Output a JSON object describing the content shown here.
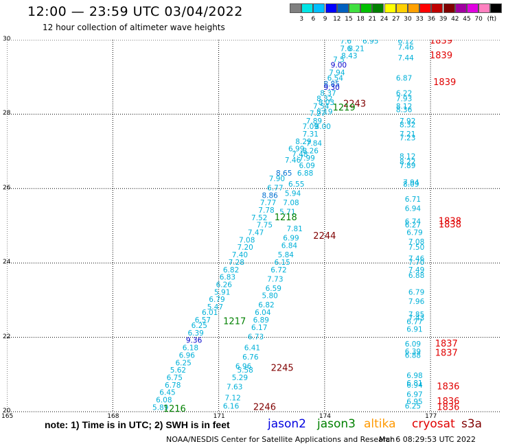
{
  "header": {
    "title": "12:00 — 23:59 UTC 03/04/2022",
    "subtitle": "12 hour collection of altimeter wave heights"
  },
  "colorbar": {
    "colors": [
      "#808080",
      "#00e5e5",
      "#00bfff",
      "#0000ff",
      "#0060c0",
      "#40e040",
      "#00c000",
      "#008000",
      "#ffff00",
      "#ffd000",
      "#ffa000",
      "#ff0000",
      "#c00000",
      "#800000",
      "#a000a0",
      "#e000e0",
      "#ff80c0",
      "#000000"
    ],
    "labels": [
      "3",
      "6",
      "9",
      "12",
      "15",
      "18",
      "21",
      "24",
      "27",
      "30",
      "33",
      "36",
      "39",
      "42",
      "45",
      "70",
      "(ft)"
    ]
  },
  "axes": {
    "yticks": [
      "30",
      "28",
      "26",
      "24",
      "22",
      "20"
    ],
    "xticks": [
      "165",
      "168",
      "171",
      "174",
      "177"
    ]
  },
  "chart_data": {
    "type": "scatter",
    "xlim": [
      165,
      179
    ],
    "ylim": [
      20,
      30
    ],
    "grid": true,
    "points": [
      {
        "x": 174.6,
        "y": 29.9,
        "v": "7.6"
      },
      {
        "x": 175.3,
        "y": 29.9,
        "v": "6.95"
      },
      {
        "x": 176.3,
        "y": 29.9,
        "v": "6.12"
      },
      {
        "x": 176.3,
        "y": 29.73,
        "v": "7.46"
      },
      {
        "x": 174.6,
        "y": 29.7,
        "v": "7.6"
      },
      {
        "x": 174.9,
        "y": 29.7,
        "v": "8.21"
      },
      {
        "x": 176.3,
        "y": 29.45,
        "v": "7.44"
      },
      {
        "x": 174.7,
        "y": 29.5,
        "v": "8.43"
      },
      {
        "x": 174.4,
        "y": 29.4,
        "v": "7.5"
      },
      {
        "x": 174.4,
        "y": 29.25,
        "v": "9.00"
      },
      {
        "x": 174.35,
        "y": 29.05,
        "v": "7.94"
      },
      {
        "x": 174.3,
        "y": 28.9,
        "v": "6.54"
      },
      {
        "x": 176.25,
        "y": 28.9,
        "v": "6.87"
      },
      {
        "x": 174.2,
        "y": 28.75,
        "v": "8.85"
      },
      {
        "x": 174.2,
        "y": 28.65,
        "v": "9.30"
      },
      {
        "x": 174.1,
        "y": 28.5,
        "v": "8.37"
      },
      {
        "x": 176.25,
        "y": 28.5,
        "v": "6.22"
      },
      {
        "x": 176.25,
        "y": 28.35,
        "v": "7.93"
      },
      {
        "x": 174.0,
        "y": 28.35,
        "v": "8.32"
      },
      {
        "x": 174.05,
        "y": 28.25,
        "v": "8.03"
      },
      {
        "x": 173.9,
        "y": 28.15,
        "v": "7.54"
      },
      {
        "x": 176.25,
        "y": 28.15,
        "v": "8.12"
      },
      {
        "x": 176.25,
        "y": 28.05,
        "v": "8.36"
      },
      {
        "x": 174.0,
        "y": 28.0,
        "v": "8.19"
      },
      {
        "x": 173.8,
        "y": 27.95,
        "v": "7.27"
      },
      {
        "x": 173.7,
        "y": 27.75,
        "v": "7.89"
      },
      {
        "x": 176.35,
        "y": 27.75,
        "v": "7.92"
      },
      {
        "x": 176.35,
        "y": 27.65,
        "v": "8.32"
      },
      {
        "x": 173.6,
        "y": 27.6,
        "v": "7.09"
      },
      {
        "x": 173.95,
        "y": 27.6,
        "v": "8.00"
      },
      {
        "x": 173.6,
        "y": 27.4,
        "v": "7.31"
      },
      {
        "x": 176.35,
        "y": 27.4,
        "v": "7.21"
      },
      {
        "x": 176.35,
        "y": 27.3,
        "v": "7.23"
      },
      {
        "x": 173.4,
        "y": 27.2,
        "v": "8.29"
      },
      {
        "x": 173.7,
        "y": 27.15,
        "v": "7.84"
      },
      {
        "x": 173.2,
        "y": 27.0,
        "v": "6.99"
      },
      {
        "x": 173.6,
        "y": 26.95,
        "v": "8.26"
      },
      {
        "x": 173.3,
        "y": 26.85,
        "v": "7.48"
      },
      {
        "x": 176.35,
        "y": 26.8,
        "v": "8.12"
      },
      {
        "x": 173.5,
        "y": 26.75,
        "v": "7.99"
      },
      {
        "x": 173.1,
        "y": 26.7,
        "v": "7.46"
      },
      {
        "x": 176.35,
        "y": 26.65,
        "v": "8.22"
      },
      {
        "x": 176.35,
        "y": 26.55,
        "v": "7.89"
      },
      {
        "x": 173.5,
        "y": 26.55,
        "v": "6.09"
      },
      {
        "x": 172.85,
        "y": 26.35,
        "v": "8.65"
      },
      {
        "x": 173.45,
        "y": 26.35,
        "v": "6.88"
      },
      {
        "x": 172.65,
        "y": 26.2,
        "v": "7.90"
      },
      {
        "x": 173.2,
        "y": 26.05,
        "v": "6.55"
      },
      {
        "x": 176.45,
        "y": 26.1,
        "v": "7.94"
      },
      {
        "x": 176.45,
        "y": 26.05,
        "v": "8.09"
      },
      {
        "x": 172.6,
        "y": 25.95,
        "v": "6.77"
      },
      {
        "x": 173.1,
        "y": 25.8,
        "v": "5.94"
      },
      {
        "x": 172.45,
        "y": 25.75,
        "v": "8.86"
      },
      {
        "x": 176.5,
        "y": 25.65,
        "v": "6.71"
      },
      {
        "x": 172.4,
        "y": 25.55,
        "v": "7.77"
      },
      {
        "x": 173.05,
        "y": 25.55,
        "v": "7.08"
      },
      {
        "x": 176.5,
        "y": 25.4,
        "v": "6.94"
      },
      {
        "x": 172.35,
        "y": 25.35,
        "v": "7.78"
      },
      {
        "x": 172.95,
        "y": 25.3,
        "v": "5.71"
      },
      {
        "x": 172.15,
        "y": 25.15,
        "v": "7.52"
      },
      {
        "x": 176.5,
        "y": 25.05,
        "v": "6.74"
      },
      {
        "x": 172.3,
        "y": 24.95,
        "v": "7.75"
      },
      {
        "x": 176.5,
        "y": 24.95,
        "v": "6.27"
      },
      {
        "x": 173.15,
        "y": 24.85,
        "v": "7.81"
      },
      {
        "x": 176.55,
        "y": 24.75,
        "v": "6.79"
      },
      {
        "x": 172.05,
        "y": 24.75,
        "v": "7.47"
      },
      {
        "x": 173.05,
        "y": 24.6,
        "v": "6.99"
      },
      {
        "x": 171.8,
        "y": 24.55,
        "v": "7.08"
      },
      {
        "x": 176.6,
        "y": 24.5,
        "v": "7.08"
      },
      {
        "x": 173.0,
        "y": 24.4,
        "v": "6.84"
      },
      {
        "x": 171.75,
        "y": 24.35,
        "v": "7.20"
      },
      {
        "x": 176.6,
        "y": 24.35,
        "v": "7.50"
      },
      {
        "x": 171.6,
        "y": 24.15,
        "v": "7.40"
      },
      {
        "x": 172.9,
        "y": 24.15,
        "v": "5.84"
      },
      {
        "x": 176.6,
        "y": 24.05,
        "v": "7.46"
      },
      {
        "x": 171.5,
        "y": 23.95,
        "v": "7.28"
      },
      {
        "x": 172.8,
        "y": 23.95,
        "v": "6.15"
      },
      {
        "x": 176.6,
        "y": 23.95,
        "v": "7.70"
      },
      {
        "x": 171.35,
        "y": 23.75,
        "v": "6.82"
      },
      {
        "x": 172.7,
        "y": 23.75,
        "v": "6.72"
      },
      {
        "x": 176.6,
        "y": 23.75,
        "v": "7.49"
      },
      {
        "x": 171.25,
        "y": 23.55,
        "v": "6.83"
      },
      {
        "x": 176.6,
        "y": 23.6,
        "v": "6.88"
      },
      {
        "x": 172.6,
        "y": 23.5,
        "v": "7.73"
      },
      {
        "x": 171.15,
        "y": 23.35,
        "v": "6.26"
      },
      {
        "x": 171.1,
        "y": 23.15,
        "v": "5.91"
      },
      {
        "x": 172.55,
        "y": 23.25,
        "v": "6.59"
      },
      {
        "x": 176.6,
        "y": 23.15,
        "v": "6.79"
      },
      {
        "x": 170.95,
        "y": 22.95,
        "v": "6.79"
      },
      {
        "x": 172.45,
        "y": 23.05,
        "v": "5.80"
      },
      {
        "x": 176.6,
        "y": 22.9,
        "v": "7.96"
      },
      {
        "x": 170.9,
        "y": 22.75,
        "v": "5.47"
      },
      {
        "x": 172.35,
        "y": 22.8,
        "v": "6.82"
      },
      {
        "x": 170.75,
        "y": 22.6,
        "v": "6.01"
      },
      {
        "x": 172.25,
        "y": 22.6,
        "v": "6.04"
      },
      {
        "x": 176.6,
        "y": 22.55,
        "v": "7.85"
      },
      {
        "x": 170.55,
        "y": 22.4,
        "v": "6.57"
      },
      {
        "x": 176.6,
        "y": 22.45,
        "v": "7.43"
      },
      {
        "x": 172.2,
        "y": 22.4,
        "v": "6.89"
      },
      {
        "x": 176.55,
        "y": 22.35,
        "v": "6.77"
      },
      {
        "x": 170.45,
        "y": 22.25,
        "v": "6.25"
      },
      {
        "x": 172.15,
        "y": 22.2,
        "v": "6.17"
      },
      {
        "x": 176.55,
        "y": 22.15,
        "v": "6.91"
      },
      {
        "x": 170.35,
        "y": 22.05,
        "v": "6.39"
      },
      {
        "x": 172.05,
        "y": 21.95,
        "v": "6.73"
      },
      {
        "x": 170.3,
        "y": 21.85,
        "v": "9.36"
      },
      {
        "x": 176.5,
        "y": 21.75,
        "v": "6.09"
      },
      {
        "x": 170.2,
        "y": 21.65,
        "v": "6.18"
      },
      {
        "x": 171.95,
        "y": 21.65,
        "v": "6.41"
      },
      {
        "x": 176.5,
        "y": 21.55,
        "v": "6.39"
      },
      {
        "x": 176.5,
        "y": 21.45,
        "v": "6.88"
      },
      {
        "x": 170.1,
        "y": 21.45,
        "v": "6.96"
      },
      {
        "x": 171.9,
        "y": 21.4,
        "v": "6.76"
      },
      {
        "x": 170.0,
        "y": 21.25,
        "v": "6.25"
      },
      {
        "x": 171.7,
        "y": 21.15,
        "v": "6.96"
      },
      {
        "x": 169.85,
        "y": 21.05,
        "v": "5.62"
      },
      {
        "x": 171.75,
        "y": 21.05,
        "v": "5.58"
      },
      {
        "x": 176.55,
        "y": 20.9,
        "v": "6.98"
      },
      {
        "x": 169.75,
        "y": 20.85,
        "v": "6.75"
      },
      {
        "x": 171.6,
        "y": 20.85,
        "v": "5.29"
      },
      {
        "x": 176.55,
        "y": 20.7,
        "v": "6.81"
      },
      {
        "x": 169.7,
        "y": 20.65,
        "v": "6.78"
      },
      {
        "x": 176.55,
        "y": 20.65,
        "v": "6.94"
      },
      {
        "x": 171.45,
        "y": 20.6,
        "v": "7.63"
      },
      {
        "x": 169.55,
        "y": 20.45,
        "v": "6.45"
      },
      {
        "x": 176.55,
        "y": 20.4,
        "v": "6.97"
      },
      {
        "x": 171.4,
        "y": 20.3,
        "v": "7.12"
      },
      {
        "x": 169.45,
        "y": 20.25,
        "v": "6.08"
      },
      {
        "x": 176.55,
        "y": 20.2,
        "v": "6.95"
      },
      {
        "x": 176.5,
        "y": 20.08,
        "v": "6.25"
      },
      {
        "x": 169.35,
        "y": 20.05,
        "v": "5.89"
      },
      {
        "x": 171.35,
        "y": 20.08,
        "v": "6.16"
      }
    ],
    "track_labels": [
      {
        "x": 177.3,
        "y": 29.9,
        "v": "1839",
        "color": "#e00000"
      },
      {
        "x": 177.3,
        "y": 29.5,
        "v": "1839",
        "color": "#e00000"
      },
      {
        "x": 177.4,
        "y": 28.78,
        "v": "1839",
        "color": "#e00000"
      },
      {
        "x": 174.85,
        "y": 28.2,
        "v": "2243",
        "color": "#800000"
      },
      {
        "x": 174.55,
        "y": 28.1,
        "v": "1219",
        "color": "#008000"
      },
      {
        "x": 172.9,
        "y": 25.15,
        "v": "1218",
        "color": "#008000"
      },
      {
        "x": 177.55,
        "y": 25.05,
        "v": "1838",
        "color": "#e00000"
      },
      {
        "x": 177.55,
        "y": 24.95,
        "v": "1838",
        "color": "#e00000"
      },
      {
        "x": 174.0,
        "y": 24.65,
        "v": "2244",
        "color": "#800000"
      },
      {
        "x": 171.45,
        "y": 22.35,
        "v": "1217",
        "color": "#008000"
      },
      {
        "x": 177.45,
        "y": 21.75,
        "v": "1837",
        "color": "#e00000"
      },
      {
        "x": 177.45,
        "y": 21.5,
        "v": "1837",
        "color": "#e00000"
      },
      {
        "x": 172.8,
        "y": 21.1,
        "v": "2245",
        "color": "#800000"
      },
      {
        "x": 177.5,
        "y": 20.6,
        "v": "1836",
        "color": "#e00000"
      },
      {
        "x": 177.5,
        "y": 20.2,
        "v": "1836",
        "color": "#e00000"
      },
      {
        "x": 177.5,
        "y": 20.05,
        "v": "1836",
        "color": "#e00000"
      },
      {
        "x": 172.3,
        "y": 20.05,
        "v": "2246",
        "color": "#800000"
      },
      {
        "x": 169.75,
        "y": 20.0,
        "v": "1216",
        "color": "#008000"
      }
    ]
  },
  "footer": {
    "note": "note:  1) Time is in UTC; 2) SWH is in feet",
    "satellites": [
      {
        "name": "jason2",
        "color": "#0000e0"
      },
      {
        "name": "jason3",
        "color": "#008000"
      },
      {
        "name": "altika",
        "color": "#ff9900"
      },
      {
        "name": "cryosat",
        "color": "#e00000"
      },
      {
        "name": "s3a",
        "color": "#800000"
      }
    ],
    "credit": "NOAA/NESDIS Center for Satellite Applications and Research",
    "timestamp": "Mar  6 08:29:53 UTC 2022"
  }
}
